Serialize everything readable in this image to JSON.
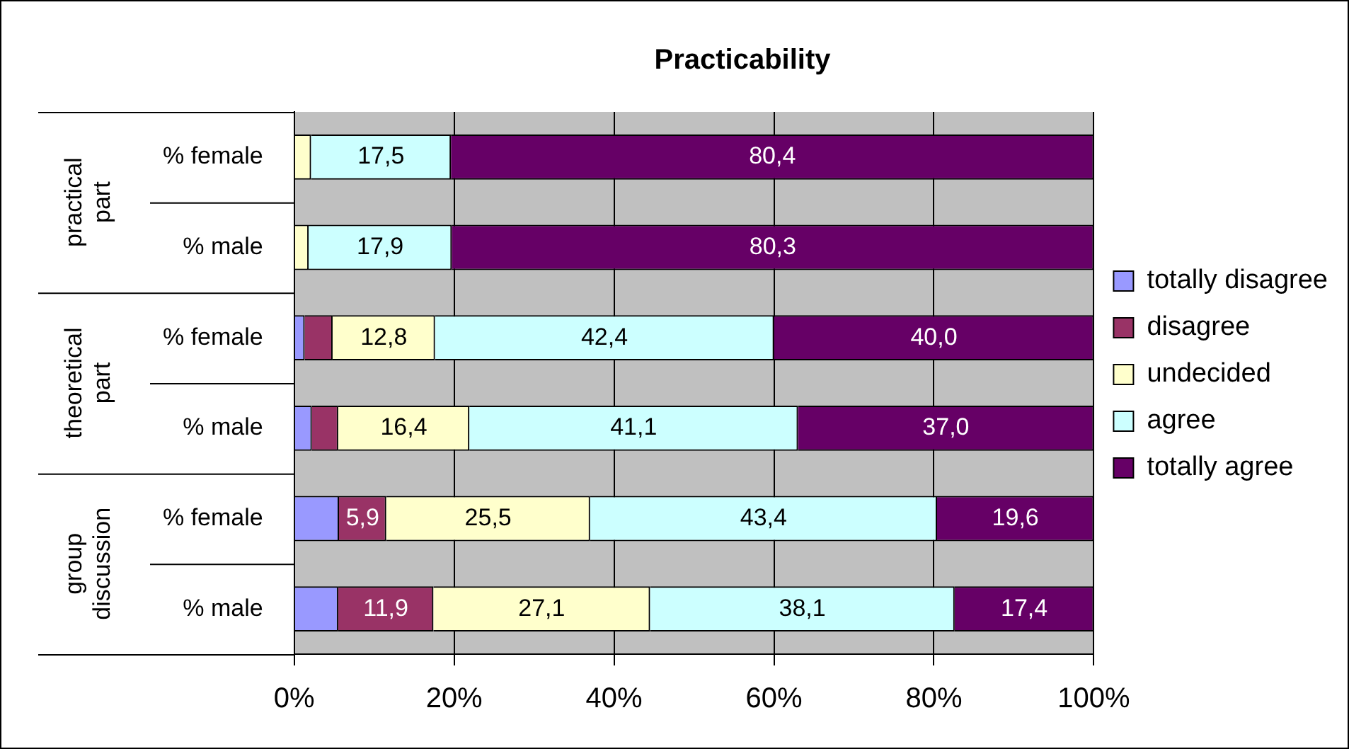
{
  "chart_data": {
    "type": "bar",
    "orientation": "horizontal",
    "stacked": true,
    "title": "Practicability",
    "categories": [
      "% female",
      "% male",
      "% female",
      "% male",
      "% female",
      "% male"
    ],
    "annotations": [
      "practical part",
      "theoretical part",
      "group discussion"
    ],
    "series": [
      {
        "name": "totally disagree",
        "color": "#9999ff",
        "values": [
          0,
          0,
          1.3,
          2.2,
          5.6,
          5.5
        ],
        "value_labels": [
          null,
          null,
          null,
          null,
          null,
          null
        ]
      },
      {
        "name": "disagree",
        "color": "#993366",
        "values": [
          0,
          0,
          3.5,
          3.3,
          5.9,
          11.9
        ],
        "value_labels": [
          null,
          null,
          null,
          null,
          "5,9",
          "11,9"
        ]
      },
      {
        "name": "undecided",
        "color": "#ffffcc",
        "values": [
          2.1,
          1.8,
          12.8,
          16.4,
          25.5,
          27.1
        ],
        "value_labels": [
          null,
          null,
          "12,8",
          "16,4",
          "25,5",
          "27,1"
        ]
      },
      {
        "name": "agree",
        "color": "#ccffff",
        "values": [
          17.5,
          17.9,
          42.4,
          41.1,
          43.4,
          38.1
        ],
        "value_labels": [
          "17,5",
          "17,9",
          "42,4",
          "41,1",
          "43,4",
          "38,1"
        ]
      },
      {
        "name": "totally agree",
        "color": "#660066",
        "values": [
          80.4,
          80.3,
          40.0,
          37.0,
          19.6,
          17.4
        ],
        "value_labels": [
          "80,4",
          "80,3",
          "40,0",
          "37,0",
          "19,6",
          "17,4"
        ]
      }
    ],
    "xlim": [
      0,
      100
    ],
    "xticks": [
      {
        "value": 0,
        "label": "0%"
      },
      {
        "value": 20,
        "label": "20%"
      },
      {
        "value": 40,
        "label": "40%"
      },
      {
        "value": 60,
        "label": "60%"
      },
      {
        "value": 80,
        "label": "80%"
      },
      {
        "value": 100,
        "label": "100%"
      }
    ],
    "grid": "x",
    "legend": "right"
  }
}
